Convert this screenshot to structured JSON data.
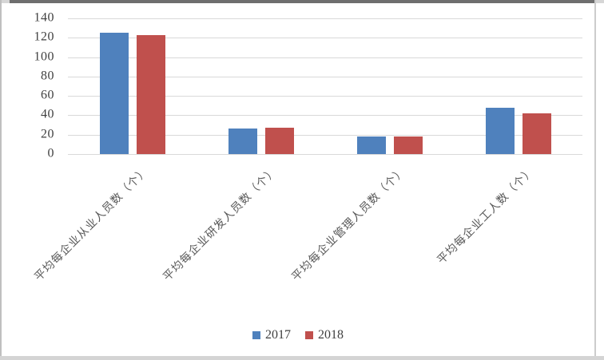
{
  "chart_data": {
    "type": "bar",
    "title": "",
    "categories": [
      "平均每企业从业人员数（个）",
      "平均每企业研发人员数（个）",
      "平均每企业管理人员数（个）",
      "平均每企业工人数（个）"
    ],
    "series": [
      {
        "name": "2017",
        "color": "#4F81BD",
        "values": [
          125,
          26,
          18,
          48
        ]
      },
      {
        "name": "2018",
        "color": "#C0504D",
        "values": [
          123,
          27,
          18,
          42
        ]
      }
    ],
    "ylim": [
      0,
      140
    ],
    "ytick_step": 20,
    "yticks": [
      "0",
      "20",
      "40",
      "60",
      "80",
      "100",
      "120",
      "140"
    ],
    "grid": true,
    "gridline_color": "#D9D9D9",
    "tick_label_color": "#404040",
    "category_label_color": "#595959",
    "legend_position": "bottom",
    "legend_entries": [
      "2017",
      "2018"
    ]
  }
}
